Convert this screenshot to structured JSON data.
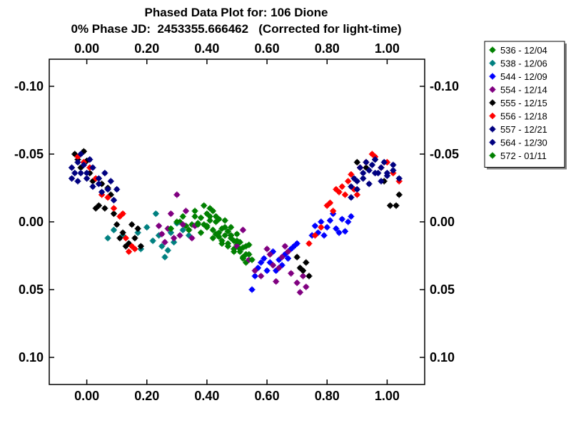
{
  "chart_data": {
    "type": "scatter",
    "title": "Phased Data Plot for: 106 Dione",
    "subtitle": "0% Phase JD:  2453355.666462   (Corrected for light-time)",
    "xlabel": "",
    "ylabel": "",
    "xlim": [
      -0.125,
      1.125
    ],
    "ylim": [
      0.12,
      -0.12
    ],
    "y_inverted": true,
    "x_ticks": [
      0.0,
      0.2,
      0.4,
      0.6,
      0.8,
      1.0
    ],
    "x_tick_labels": [
      "0.00",
      "0.20",
      "0.40",
      "0.60",
      "0.80",
      "1.00"
    ],
    "y_ticks": [
      -0.1,
      -0.05,
      0.0,
      0.05,
      0.1
    ],
    "y_tick_labels": [
      "-0.10",
      "-0.05",
      "0.00",
      "0.05",
      "0.10"
    ],
    "grid": false,
    "legend_position": "top-right",
    "series": [
      {
        "name": "536 - 12/04",
        "color": "#008000",
        "x": [
          0.31,
          0.33,
          0.35,
          0.36,
          0.37,
          0.38,
          0.39,
          0.4,
          0.4,
          0.41,
          0.41,
          0.42,
          0.42,
          0.43,
          0.43,
          0.44,
          0.44,
          0.45,
          0.45,
          0.46,
          0.46,
          0.47,
          0.47,
          0.48,
          0.48,
          0.49,
          0.49,
          0.5,
          0.5,
          0.51,
          0.51,
          0.52,
          0.52,
          0.53,
          0.53,
          0.54
        ],
        "y": [
          0.0,
          0.003,
          0.002,
          -0.004,
          0.001,
          -0.003,
          0.002,
          -0.006,
          0.004,
          -0.01,
          -0.001,
          -0.008,
          0.006,
          -0.004,
          0.009,
          -0.002,
          0.011,
          0.005,
          0.014,
          -0.001,
          0.01,
          0.007,
          0.016,
          0.004,
          0.012,
          0.014,
          0.02,
          0.009,
          0.017,
          0.015,
          0.022,
          0.019,
          0.027,
          0.024,
          0.03,
          0.017
        ]
      },
      {
        "name": "538 - 12/06",
        "color": "#008080",
        "x": [
          0.07,
          0.09,
          0.12,
          0.14,
          0.17,
          0.18,
          0.2,
          0.22,
          0.23,
          0.24,
          0.25,
          0.26,
          0.27,
          0.28,
          0.29,
          0.3,
          0.32,
          0.34
        ],
        "y": [
          0.012,
          0.006,
          0.01,
          0.016,
          0.008,
          0.02,
          0.004,
          0.014,
          -0.006,
          0.01,
          0.018,
          0.026,
          0.021,
          0.008,
          0.015,
          0.001,
          0.006,
          0.01
        ]
      },
      {
        "name": "544 - 12/09",
        "color": "#0000ff",
        "x": [
          0.55,
          0.56,
          0.57,
          0.58,
          0.59,
          0.6,
          0.61,
          0.62,
          0.63,
          0.64,
          0.65,
          0.66,
          0.67,
          0.68,
          0.69,
          0.7,
          0.75,
          0.76,
          0.77,
          0.78,
          0.79,
          0.8,
          0.81,
          0.82,
          0.83,
          0.84,
          0.85,
          0.86,
          0.87,
          0.88
        ],
        "y": [
          0.05,
          0.04,
          0.034,
          0.03,
          0.027,
          0.036,
          0.03,
          0.022,
          0.036,
          0.028,
          0.032,
          0.024,
          0.027,
          0.02,
          0.018,
          0.016,
          0.01,
          0.003,
          0.008,
          0.0,
          0.01,
          0.004,
          -0.001,
          -0.006,
          0.005,
          0.008,
          -0.002,
          0.007,
          0.0,
          -0.004
        ]
      },
      {
        "name": "554 - 12/14",
        "color": "#800080",
        "x": [
          0.24,
          0.25,
          0.26,
          0.27,
          0.28,
          0.29,
          0.3,
          0.31,
          0.32,
          0.33,
          0.34,
          0.35,
          0.36,
          0.48,
          0.5,
          0.52,
          0.54,
          0.56,
          0.58,
          0.6,
          0.61,
          0.62,
          0.63,
          0.64,
          0.65,
          0.66,
          0.67,
          0.68,
          0.7,
          0.71,
          0.72,
          0.73
        ],
        "y": [
          0.003,
          0.009,
          0.015,
          0.005,
          -0.006,
          0.012,
          -0.02,
          0.01,
          0.002,
          -0.008,
          0.006,
          0.012,
          0.003,
          0.01,
          0.018,
          0.006,
          0.028,
          0.036,
          0.04,
          0.02,
          0.024,
          0.032,
          0.044,
          0.034,
          0.026,
          0.018,
          0.022,
          0.038,
          0.045,
          0.052,
          0.04,
          0.048
        ]
      },
      {
        "name": "555 - 12/15",
        "color": "#000000",
        "x": [
          -0.04,
          -0.03,
          -0.02,
          -0.01,
          0.0,
          0.01,
          0.02,
          0.03,
          0.04,
          0.05,
          0.06,
          0.07,
          0.08,
          0.09,
          0.1,
          0.11,
          0.12,
          0.13,
          0.14,
          0.15,
          0.16,
          0.17,
          0.18,
          0.7,
          0.71,
          0.72,
          0.73,
          0.74,
          0.9,
          0.93,
          0.96,
          0.99,
          1.01,
          1.03,
          1.04
        ],
        "y": [
          -0.05,
          -0.046,
          -0.04,
          -0.052,
          -0.045,
          -0.036,
          -0.03,
          -0.01,
          -0.012,
          -0.028,
          -0.01,
          -0.025,
          -0.02,
          -0.006,
          0.002,
          0.012,
          0.008,
          0.018,
          0.016,
          0.002,
          0.012,
          0.005,
          0.018,
          0.026,
          0.034,
          0.036,
          0.03,
          0.04,
          -0.044,
          -0.04,
          -0.046,
          -0.03,
          -0.012,
          -0.012,
          -0.02
        ]
      },
      {
        "name": "556 - 12/18",
        "color": "#ff0000",
        "x": [
          -0.03,
          -0.01,
          0.01,
          0.03,
          0.05,
          0.07,
          0.09,
          0.11,
          0.12,
          0.13,
          0.14,
          0.15,
          0.16,
          0.74,
          0.76,
          0.78,
          0.8,
          0.81,
          0.82,
          0.83,
          0.84,
          0.85,
          0.86,
          0.87,
          0.88,
          0.89,
          0.9,
          0.91,
          0.93,
          0.95,
          0.96,
          0.98,
          1.0,
          1.02,
          1.04
        ],
        "y": [
          -0.048,
          -0.044,
          -0.04,
          -0.032,
          -0.02,
          -0.018,
          -0.01,
          -0.004,
          -0.006,
          0.012,
          0.022,
          0.018,
          0.02,
          0.016,
          0.01,
          0.004,
          -0.012,
          -0.014,
          -0.008,
          -0.024,
          -0.022,
          -0.026,
          -0.02,
          -0.03,
          -0.035,
          -0.024,
          -0.02,
          -0.04,
          -0.044,
          -0.05,
          -0.048,
          -0.04,
          -0.044,
          -0.036,
          -0.03
        ]
      },
      {
        "name": "557 - 12/21",
        "color": "#000080",
        "x": [
          -0.05,
          -0.04,
          -0.03,
          -0.02,
          -0.01,
          0.0,
          0.01,
          0.02,
          0.04,
          0.06,
          0.08,
          0.1,
          0.88,
          0.89,
          0.9,
          0.91,
          0.92,
          0.93,
          0.94,
          0.95,
          0.96,
          0.97,
          0.98,
          0.99,
          1.0,
          1.02,
          1.04
        ],
        "y": [
          -0.04,
          -0.036,
          -0.044,
          -0.05,
          -0.042,
          -0.036,
          -0.046,
          -0.04,
          -0.032,
          -0.036,
          -0.03,
          -0.024,
          -0.026,
          -0.032,
          -0.03,
          -0.04,
          -0.036,
          -0.044,
          -0.038,
          -0.042,
          -0.046,
          -0.036,
          -0.04,
          -0.044,
          -0.036,
          -0.042,
          -0.032
        ]
      },
      {
        "name": "564 - 12/30",
        "color": "#000080",
        "x": [
          -0.05,
          -0.03,
          -0.02,
          0.0,
          0.02,
          0.04,
          0.05,
          0.07,
          0.09,
          0.88,
          0.9,
          0.92,
          0.94,
          0.96,
          0.98,
          1.0,
          1.02
        ],
        "y": [
          -0.032,
          -0.03,
          -0.036,
          -0.032,
          -0.026,
          -0.028,
          -0.022,
          -0.024,
          -0.016,
          -0.018,
          -0.024,
          -0.032,
          -0.028,
          -0.036,
          -0.03,
          -0.034,
          -0.038
        ]
      },
      {
        "name": "572 - 01/11",
        "color": "#008000",
        "x": [
          0.28,
          0.3,
          0.32,
          0.34,
          0.36,
          0.37,
          0.38,
          0.39,
          0.4,
          0.41,
          0.42,
          0.43,
          0.44,
          0.45,
          0.46,
          0.47,
          0.48,
          0.49,
          0.5,
          0.51,
          0.52,
          0.53,
          0.54,
          0.55
        ],
        "y": [
          0.005,
          0.0,
          -0.004,
          0.006,
          -0.008,
          0.002,
          0.008,
          -0.012,
          0.003,
          -0.004,
          0.012,
          0.0,
          0.008,
          0.016,
          0.004,
          0.018,
          0.01,
          0.022,
          0.014,
          0.02,
          0.026,
          0.018,
          0.024,
          0.028
        ]
      }
    ]
  }
}
